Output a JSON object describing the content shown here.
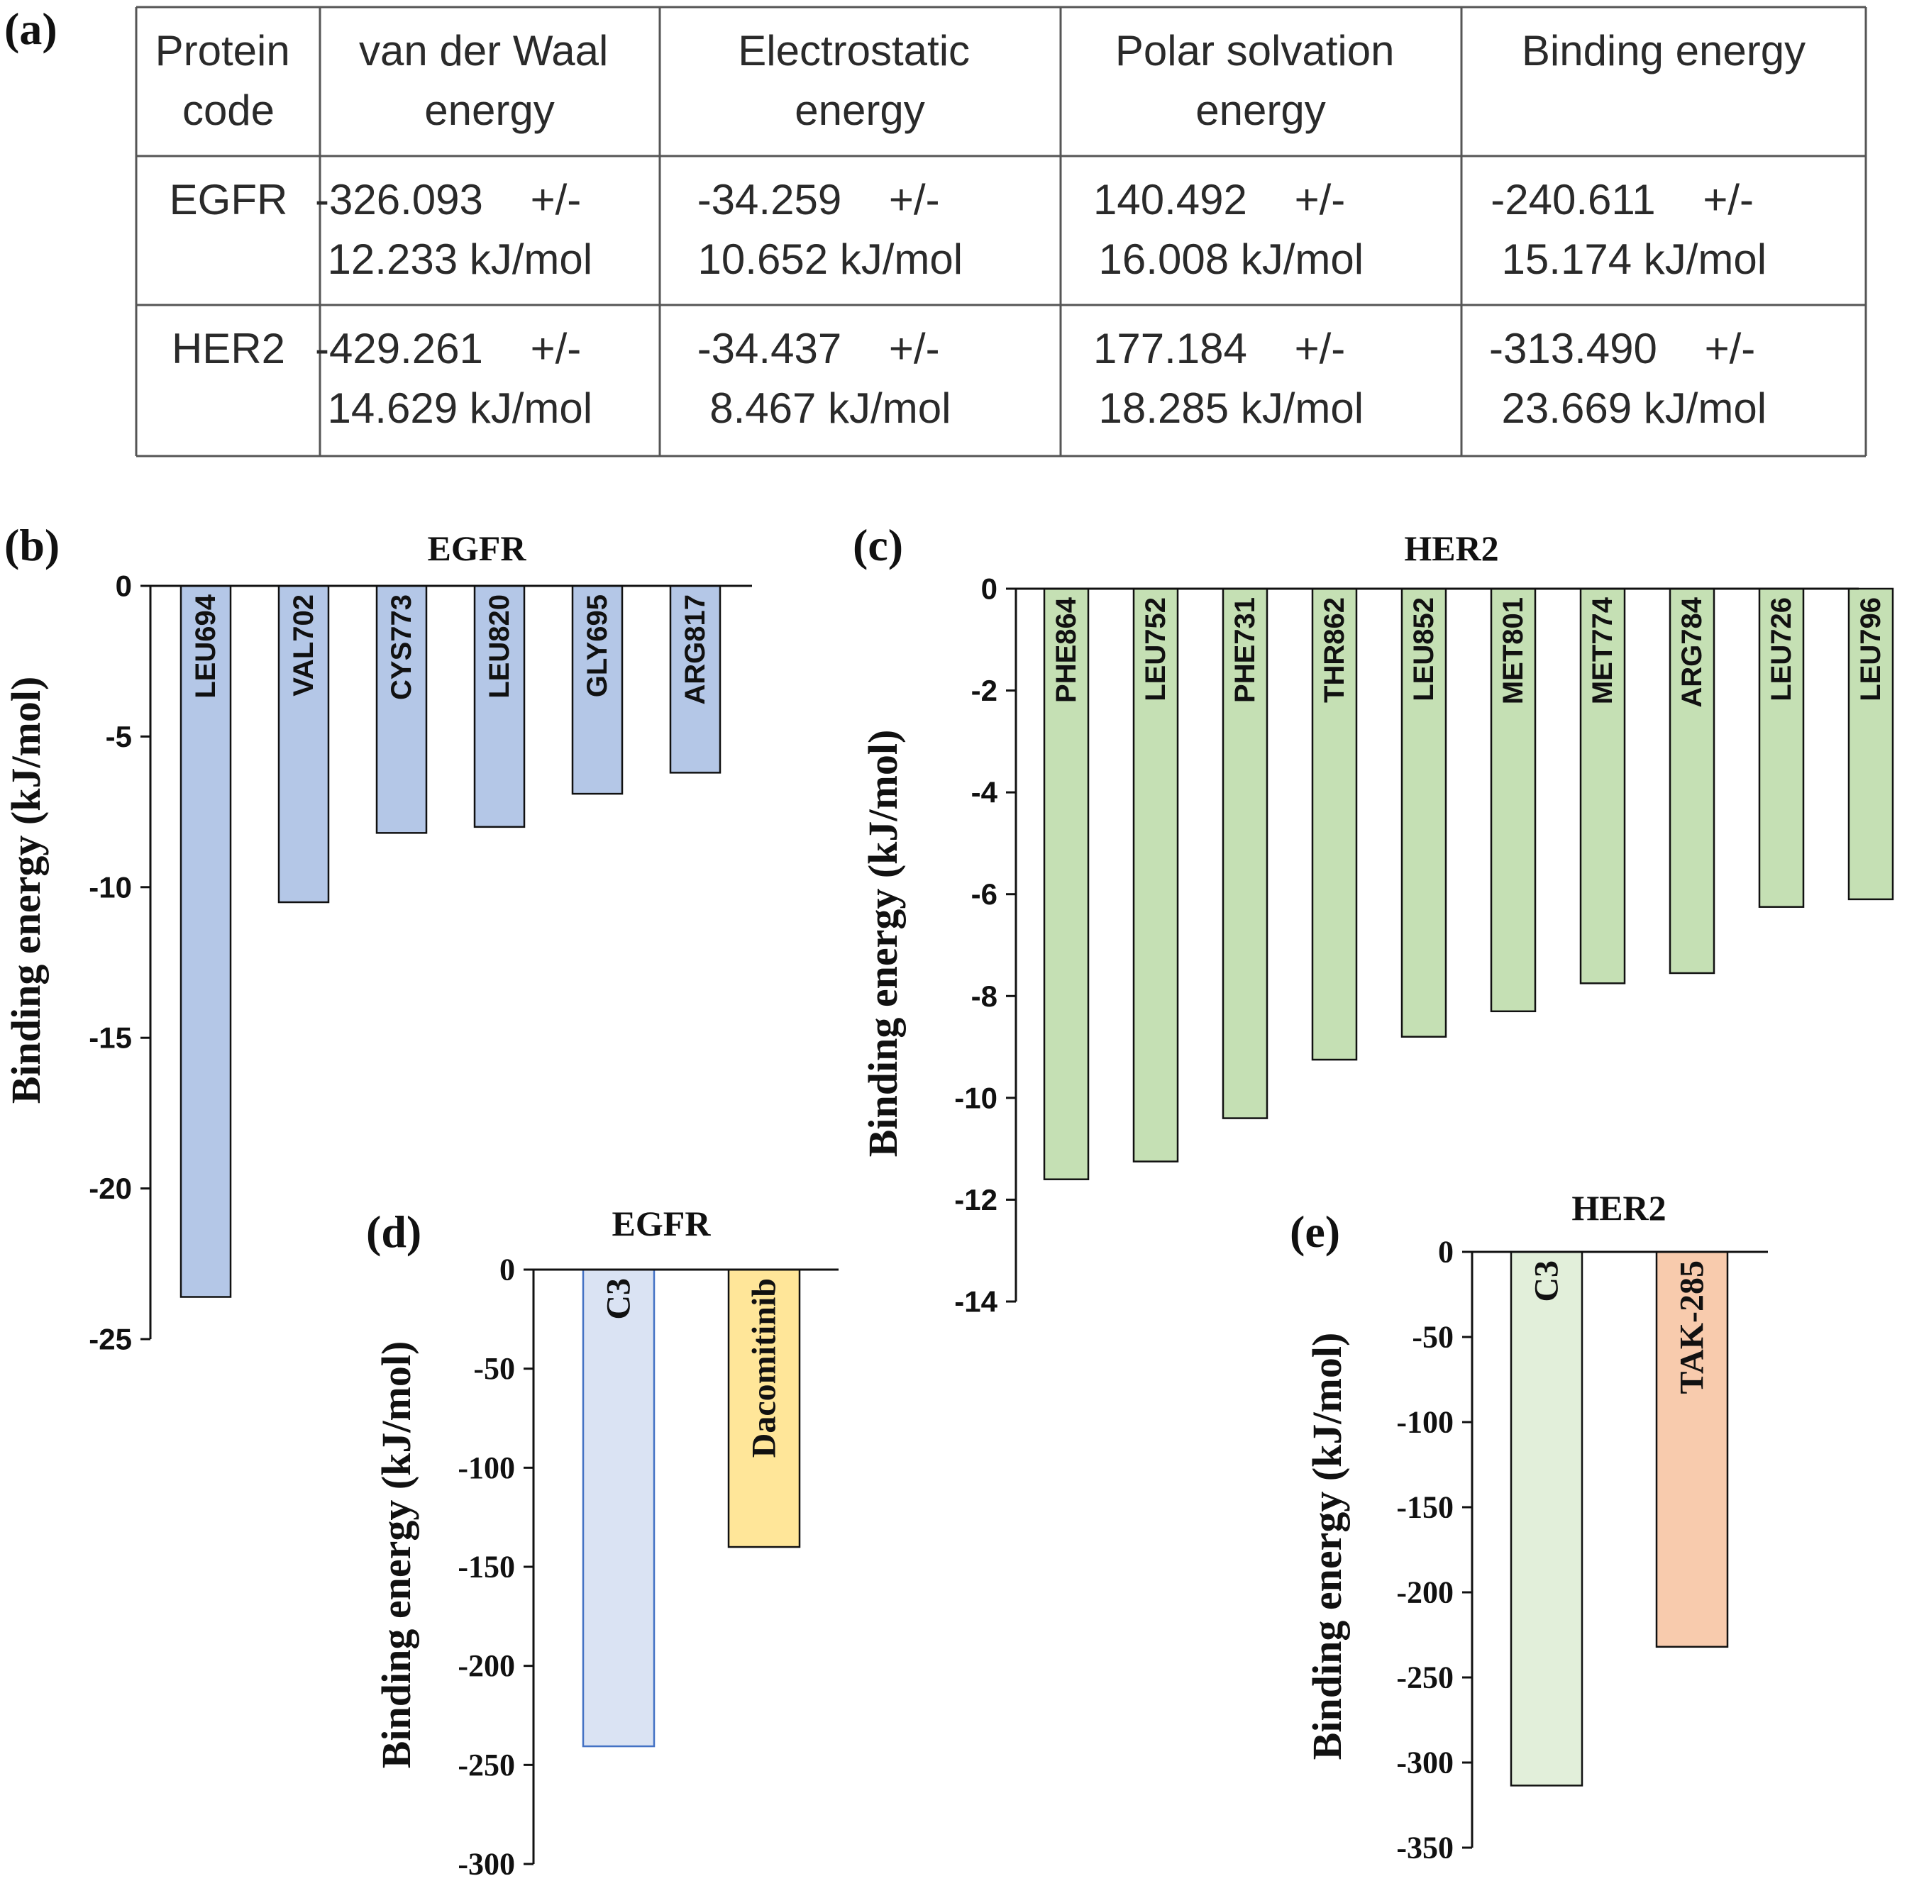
{
  "panel_labels": {
    "a": "(a)",
    "b": "(b)",
    "c": "(c)",
    "d": "(d)",
    "e": "(e)"
  },
  "table": {
    "headers": [
      [
        "Protein",
        "code"
      ],
      [
        "van der Waal",
        "energy"
      ],
      [
        "Electrostatic",
        "energy"
      ],
      [
        "Polar solvation",
        "energy"
      ],
      [
        "Binding energy"
      ]
    ],
    "rows": [
      [
        [
          "EGFR"
        ],
        [
          "-326.093    +/-",
          "12.233 kJ/mol"
        ],
        [
          "-34.259    +/-",
          "10.652 kJ/mol"
        ],
        [
          "140.492    +/-",
          "16.008 kJ/mol"
        ],
        [
          "-240.611    +/-",
          "15.174 kJ/mol"
        ]
      ],
      [
        [
          "HER2"
        ],
        [
          "-429.261    +/-",
          "14.629 kJ/mol"
        ],
        [
          "-34.437    +/-",
          "8.467 kJ/mol"
        ],
        [
          "177.184    +/-",
          "18.285 kJ/mol"
        ],
        [
          "-313.490    +/-",
          "23.669 kJ/mol"
        ]
      ]
    ]
  },
  "chart_data": [
    {
      "id": "b",
      "type": "bar",
      "title": "EGFR",
      "ylabel": "Binding energy (kJ/mol)",
      "xlabel": "",
      "categories": [
        "LEU694",
        "VAL702",
        "CYS773",
        "LEU820",
        "GLY695",
        "ARG817"
      ],
      "values": [
        -23.6,
        -10.5,
        -8.2,
        -8.0,
        -6.9,
        -6.2
      ],
      "ylim": [
        -25,
        0
      ],
      "yticks": [
        0,
        -5,
        -10,
        -15,
        -20,
        -25
      ],
      "colors": {
        "fill": "#b4c7e7",
        "stroke": "#111111"
      }
    },
    {
      "id": "c",
      "type": "bar",
      "title": "HER2",
      "ylabel": "Binding energy (kJ/mol)",
      "xlabel": "",
      "categories": [
        "PHE864",
        "LEU752",
        "PHE731",
        "THR862",
        "LEU852",
        "MET801",
        "MET774",
        "ARG784",
        "LEU726",
        "LEU796"
      ],
      "values": [
        -11.6,
        -11.25,
        -10.4,
        -9.25,
        -8.8,
        -8.3,
        -7.75,
        -7.55,
        -6.25,
        -6.1
      ],
      "ylim": [
        -14,
        0
      ],
      "yticks": [
        0,
        -2,
        -4,
        -6,
        -8,
        -10,
        -12,
        -14
      ],
      "colors": {
        "fill": "#c5e0b4",
        "stroke": "#111111"
      }
    },
    {
      "id": "d",
      "type": "bar",
      "title": "EGFR",
      "ylabel": "Binding energy (kJ/mol)",
      "xlabel": "",
      "categories": [
        "C3",
        "Dacomitinib"
      ],
      "values": [
        -240.6,
        -140
      ],
      "ylim": [
        -300,
        0
      ],
      "yticks": [
        0,
        -50,
        -100,
        -150,
        -200,
        -250,
        -300
      ],
      "colors": {
        "fills": [
          "#dae3f3",
          "#ffe699"
        ],
        "strokes": [
          "#4472c4",
          "#111111"
        ]
      }
    },
    {
      "id": "e",
      "type": "bar",
      "title": "HER2",
      "ylabel": "Binding energy (kJ/mol)",
      "xlabel": "",
      "categories": [
        "C3",
        "TAK-285"
      ],
      "values": [
        -313.5,
        -232
      ],
      "ylim": [
        -350,
        0
      ],
      "yticks": [
        0,
        -50,
        -100,
        -150,
        -200,
        -250,
        -300,
        -350
      ],
      "colors": {
        "fills": [
          "#e2efda",
          "#f8cbad"
        ],
        "strokes": [
          "#111111",
          "#111111"
        ]
      }
    }
  ]
}
